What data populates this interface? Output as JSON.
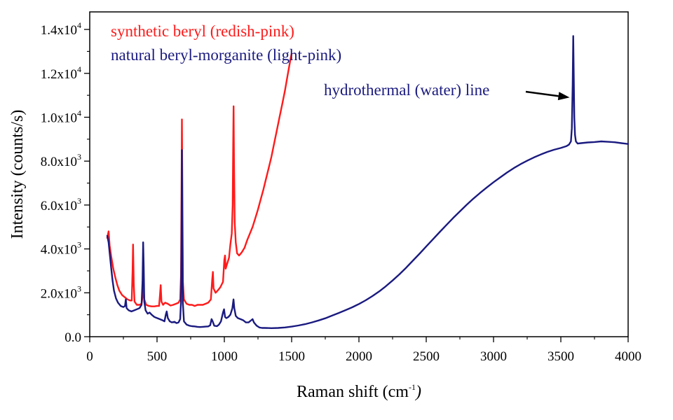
{
  "chart_data": {
    "type": "line",
    "xlabel": "Raman shift (cm",
    "xlabel_sup": "-1",
    "xlabel_close": ")",
    "ylabel": "Intensity (counts/s)",
    "xlim": [
      0,
      4000
    ],
    "ylim": [
      0,
      14800
    ],
    "grid": false,
    "legend_position": "top-left",
    "x_ticks": [
      {
        "value": 0,
        "label": "0"
      },
      {
        "value": 500,
        "label": "500"
      },
      {
        "value": 1000,
        "label": "1000"
      },
      {
        "value": 1500,
        "label": "1500"
      },
      {
        "value": 2000,
        "label": "2000"
      },
      {
        "value": 2500,
        "label": "2500"
      },
      {
        "value": 3000,
        "label": "3000"
      },
      {
        "value": 3500,
        "label": "3500"
      },
      {
        "value": 4000,
        "label": "4000"
      }
    ],
    "y_ticks": [
      {
        "value": 0,
        "mantissa": "0.0",
        "exp": ""
      },
      {
        "value": 2000,
        "mantissa": "2.0x10",
        "exp": "3"
      },
      {
        "value": 4000,
        "mantissa": "4.0x10",
        "exp": "3"
      },
      {
        "value": 6000,
        "mantissa": "6.0x10",
        "exp": "3"
      },
      {
        "value": 8000,
        "mantissa": "8.0x10",
        "exp": "3"
      },
      {
        "value": 10000,
        "mantissa": "1.0x10",
        "exp": "4"
      },
      {
        "value": 12000,
        "mantissa": "1.2x10",
        "exp": "4"
      },
      {
        "value": 14000,
        "mantissa": "1.4x10",
        "exp": "4"
      }
    ],
    "series": [
      {
        "name": "synthetic beryl (redish-pink)",
        "color": "#ff1a1a",
        "points": [
          [
            130,
            4500
          ],
          [
            140,
            4800
          ],
          [
            148,
            4150
          ],
          [
            160,
            3650
          ],
          [
            175,
            3100
          ],
          [
            190,
            2700
          ],
          [
            205,
            2350
          ],
          [
            220,
            2100
          ],
          [
            240,
            1900
          ],
          [
            260,
            1800
          ],
          [
            280,
            1700
          ],
          [
            300,
            1650
          ],
          [
            312,
            1650
          ],
          [
            318,
            3000
          ],
          [
            322,
            4200
          ],
          [
            327,
            2400
          ],
          [
            333,
            1600
          ],
          [
            350,
            1450
          ],
          [
            370,
            1450
          ],
          [
            385,
            1500
          ],
          [
            395,
            1900
          ],
          [
            400,
            2300
          ],
          [
            405,
            1700
          ],
          [
            420,
            1450
          ],
          [
            440,
            1400
          ],
          [
            460,
            1380
          ],
          [
            480,
            1380
          ],
          [
            500,
            1400
          ],
          [
            515,
            1400
          ],
          [
            522,
            1900
          ],
          [
            527,
            2350
          ],
          [
            533,
            1600
          ],
          [
            545,
            1450
          ],
          [
            560,
            1550
          ],
          [
            580,
            1500
          ],
          [
            600,
            1420
          ],
          [
            620,
            1450
          ],
          [
            640,
            1500
          ],
          [
            660,
            1550
          ],
          [
            672,
            1700
          ],
          [
            678,
            2800
          ],
          [
            682,
            6500
          ],
          [
            685,
            9900
          ],
          [
            688,
            7000
          ],
          [
            692,
            2500
          ],
          [
            700,
            1700
          ],
          [
            720,
            1500
          ],
          [
            740,
            1450
          ],
          [
            760,
            1450
          ],
          [
            780,
            1400
          ],
          [
            800,
            1450
          ],
          [
            820,
            1450
          ],
          [
            840,
            1450
          ],
          [
            860,
            1500
          ],
          [
            880,
            1550
          ],
          [
            900,
            1700
          ],
          [
            910,
            2600
          ],
          [
            915,
            2950
          ],
          [
            920,
            2200
          ],
          [
            935,
            2000
          ],
          [
            950,
            2100
          ],
          [
            970,
            2250
          ],
          [
            990,
            2500
          ],
          [
            1000,
            3500
          ],
          [
            1005,
            3700
          ],
          [
            1010,
            3100
          ],
          [
            1020,
            3300
          ],
          [
            1035,
            3600
          ],
          [
            1045,
            4200
          ],
          [
            1055,
            4700
          ],
          [
            1062,
            6000
          ],
          [
            1066,
            9000
          ],
          [
            1069,
            10500
          ],
          [
            1072,
            8000
          ],
          [
            1077,
            5200
          ],
          [
            1085,
            4300
          ],
          [
            1095,
            3800
          ],
          [
            1110,
            3700
          ],
          [
            1130,
            3850
          ],
          [
            1150,
            4050
          ],
          [
            1170,
            4400
          ],
          [
            1190,
            4700
          ],
          [
            1210,
            5000
          ],
          [
            1230,
            5400
          ],
          [
            1250,
            5800
          ],
          [
            1270,
            6250
          ],
          [
            1290,
            6700
          ],
          [
            1310,
            7200
          ],
          [
            1330,
            7700
          ],
          [
            1350,
            8200
          ],
          [
            1370,
            8800
          ],
          [
            1390,
            9400
          ],
          [
            1410,
            10000
          ],
          [
            1430,
            10600
          ],
          [
            1450,
            11200
          ],
          [
            1470,
            11900
          ],
          [
            1490,
            12600
          ],
          [
            1500,
            12900
          ]
        ]
      },
      {
        "name": "natural beryl-morganite (light-pink)",
        "color": "#1a1a80",
        "points": [
          [
            130,
            4600
          ],
          [
            140,
            4300
          ],
          [
            150,
            3700
          ],
          [
            160,
            3100
          ],
          [
            170,
            2550
          ],
          [
            180,
            2100
          ],
          [
            195,
            1750
          ],
          [
            210,
            1550
          ],
          [
            230,
            1400
          ],
          [
            250,
            1350
          ],
          [
            262,
            1400
          ],
          [
            268,
            1700
          ],
          [
            274,
            1300
          ],
          [
            290,
            1200
          ],
          [
            310,
            1150
          ],
          [
            330,
            1200
          ],
          [
            350,
            1250
          ],
          [
            370,
            1300
          ],
          [
            385,
            1450
          ],
          [
            392,
            2500
          ],
          [
            397,
            4300
          ],
          [
            401,
            3200
          ],
          [
            405,
            1600
          ],
          [
            415,
            1200
          ],
          [
            430,
            1050
          ],
          [
            445,
            1100
          ],
          [
            460,
            1000
          ],
          [
            480,
            900
          ],
          [
            500,
            850
          ],
          [
            520,
            800
          ],
          [
            540,
            750
          ],
          [
            555,
            700
          ],
          [
            565,
            1000
          ],
          [
            572,
            1150
          ],
          [
            580,
            850
          ],
          [
            595,
            700
          ],
          [
            610,
            650
          ],
          [
            630,
            680
          ],
          [
            645,
            620
          ],
          [
            660,
            650
          ],
          [
            672,
            800
          ],
          [
            678,
            1600
          ],
          [
            682,
            4500
          ],
          [
            685,
            8500
          ],
          [
            688,
            5000
          ],
          [
            692,
            1500
          ],
          [
            700,
            700
          ],
          [
            720,
            550
          ],
          [
            740,
            500
          ],
          [
            760,
            480
          ],
          [
            780,
            470
          ],
          [
            800,
            450
          ],
          [
            820,
            440
          ],
          [
            840,
            450
          ],
          [
            860,
            460
          ],
          [
            880,
            470
          ],
          [
            895,
            520
          ],
          [
            905,
            800
          ],
          [
            912,
            720
          ],
          [
            925,
            500
          ],
          [
            945,
            480
          ],
          [
            960,
            550
          ],
          [
            975,
            700
          ],
          [
            990,
            1100
          ],
          [
            998,
            1250
          ],
          [
            1005,
            900
          ],
          [
            1015,
            850
          ],
          [
            1030,
            900
          ],
          [
            1045,
            1000
          ],
          [
            1060,
            1300
          ],
          [
            1068,
            1700
          ],
          [
            1074,
            1300
          ],
          [
            1085,
            950
          ],
          [
            1100,
            850
          ],
          [
            1120,
            800
          ],
          [
            1140,
            750
          ],
          [
            1160,
            650
          ],
          [
            1180,
            650
          ],
          [
            1200,
            750
          ],
          [
            1210,
            800
          ],
          [
            1220,
            650
          ],
          [
            1240,
            500
          ],
          [
            1260,
            420
          ],
          [
            1280,
            400
          ],
          [
            1300,
            400
          ],
          [
            1350,
            390
          ],
          [
            1400,
            400
          ],
          [
            1450,
            420
          ],
          [
            1500,
            460
          ],
          [
            1550,
            510
          ],
          [
            1600,
            570
          ],
          [
            1650,
            650
          ],
          [
            1700,
            740
          ],
          [
            1750,
            840
          ],
          [
            1800,
            960
          ],
          [
            1850,
            1080
          ],
          [
            1900,
            1210
          ],
          [
            1950,
            1340
          ],
          [
            2000,
            1490
          ],
          [
            2050,
            1660
          ],
          [
            2100,
            1850
          ],
          [
            2150,
            2060
          ],
          [
            2200,
            2300
          ],
          [
            2250,
            2560
          ],
          [
            2300,
            2840
          ],
          [
            2350,
            3140
          ],
          [
            2400,
            3460
          ],
          [
            2450,
            3780
          ],
          [
            2500,
            4110
          ],
          [
            2550,
            4440
          ],
          [
            2600,
            4770
          ],
          [
            2650,
            5090
          ],
          [
            2700,
            5410
          ],
          [
            2750,
            5710
          ],
          [
            2800,
            6010
          ],
          [
            2850,
            6290
          ],
          [
            2900,
            6550
          ],
          [
            2950,
            6800
          ],
          [
            3000,
            7040
          ],
          [
            3050,
            7260
          ],
          [
            3100,
            7480
          ],
          [
            3150,
            7680
          ],
          [
            3200,
            7860
          ],
          [
            3250,
            8020
          ],
          [
            3300,
            8170
          ],
          [
            3350,
            8300
          ],
          [
            3400,
            8420
          ],
          [
            3450,
            8520
          ],
          [
            3500,
            8600
          ],
          [
            3540,
            8680
          ],
          [
            3560,
            8750
          ],
          [
            3575,
            8900
          ],
          [
            3582,
            9500
          ],
          [
            3588,
            11500
          ],
          [
            3592,
            13700
          ],
          [
            3596,
            12000
          ],
          [
            3600,
            10000
          ],
          [
            3605,
            9200
          ],
          [
            3612,
            8900
          ],
          [
            3625,
            8800
          ],
          [
            3650,
            8820
          ],
          [
            3700,
            8850
          ],
          [
            3750,
            8870
          ],
          [
            3800,
            8900
          ],
          [
            3850,
            8880
          ],
          [
            3900,
            8860
          ],
          [
            3950,
            8820
          ],
          [
            4000,
            8780
          ]
        ]
      }
    ],
    "annotation": {
      "text": "hydrothermal (water) line",
      "color": "#1a1a80",
      "arrow_to": [
        3565,
        10900
      ]
    }
  }
}
